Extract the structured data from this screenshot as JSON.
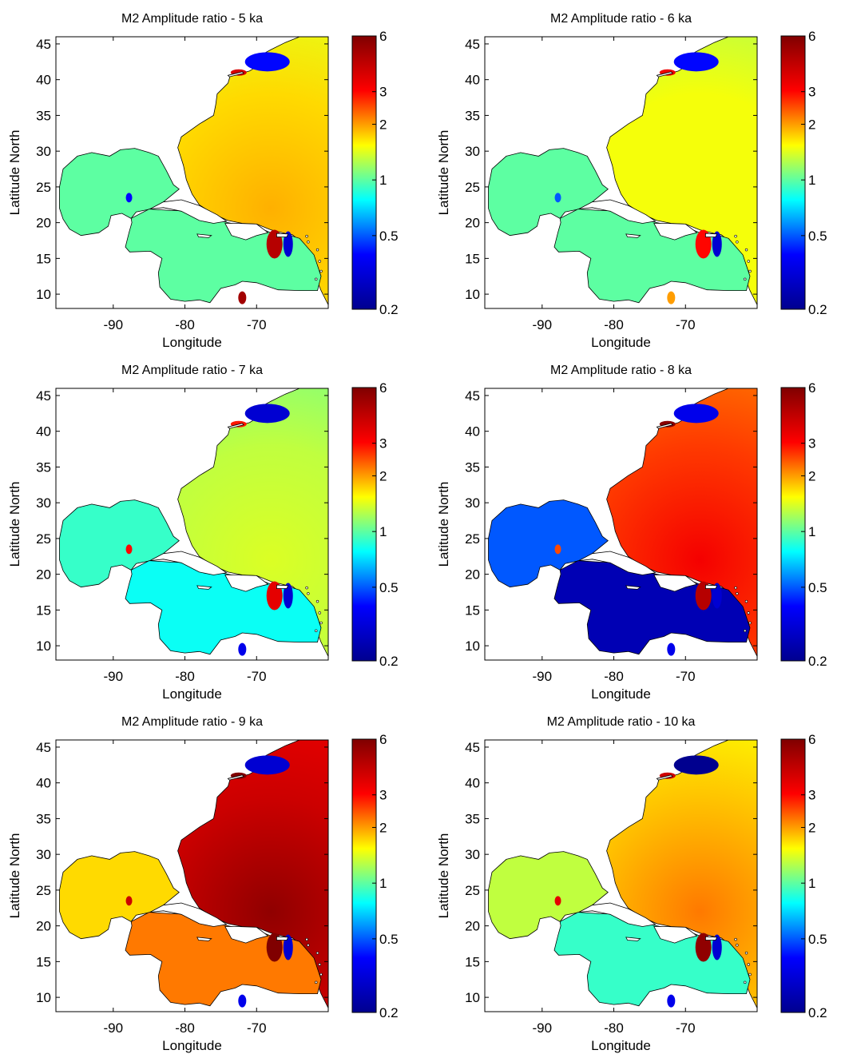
{
  "chart_data": {
    "type": "heatmap",
    "shared": {
      "title_prefix": "M2 Amplitude ratio -",
      "xlabel": "Longitude",
      "ylabel": "Latitude North",
      "xlim": [
        -98,
        -60
      ],
      "ylim": [
        8,
        46
      ],
      "xticks": [
        -90,
        -80,
        -70
      ],
      "yticks": [
        10,
        15,
        20,
        25,
        30,
        35,
        40,
        45
      ],
      "colorbar": {
        "scale": "log",
        "range": [
          0.2,
          6
        ],
        "ticks": [
          0.2,
          0.5,
          1,
          2,
          3,
          6
        ],
        "colormap": [
          "#00008f",
          "#0000ff",
          "#00ffff",
          "#ffff00",
          "#ff0000",
          "#800000"
        ]
      }
    },
    "panels": [
      {
        "title_suffix": "5 ka",
        "regions": {
          "atlantic": 1.7,
          "gulf": 1.0,
          "caribbean": 1.0,
          "gulf_of_maine": 0.4,
          "amphidrome_east_caribbean": 4.5,
          "amphidrome_yucatan": 0.4,
          "sargasso_max": 1.9
        }
      },
      {
        "title_suffix": "6 ka",
        "regions": {
          "atlantic": 1.5,
          "gulf": 1.0,
          "caribbean": 1.0,
          "gulf_of_maine": 0.4,
          "amphidrome_east_caribbean": 3.0,
          "amphidrome_yucatan": 0.5,
          "sargasso_max": 1.5
        }
      },
      {
        "title_suffix": "7 ka",
        "regions": {
          "atlantic": 1.3,
          "gulf": 0.9,
          "caribbean": 0.8,
          "gulf_of_maine": 0.3,
          "amphidrome_east_caribbean": 3.5,
          "amphidrome_yucatan": 3.0,
          "sargasso_max": 1.4
        }
      },
      {
        "title_suffix": "8 ka",
        "regions": {
          "atlantic": 2.6,
          "gulf": 0.5,
          "caribbean": 0.25,
          "gulf_of_maine": 0.35,
          "amphidrome_east_caribbean": 4.5,
          "amphidrome_yucatan": 2.5,
          "sargasso_max": 3.2
        }
      },
      {
        "title_suffix": "9 ka",
        "regions": {
          "atlantic": 4.0,
          "gulf": 1.7,
          "caribbean": 2.2,
          "gulf_of_maine": 0.3,
          "amphidrome_east_caribbean": 6.0,
          "amphidrome_yucatan": 4.0,
          "sargasso_max": 5.5
        }
      },
      {
        "title_suffix": "10 ka",
        "regions": {
          "atlantic": 1.8,
          "gulf": 1.3,
          "caribbean": 0.9,
          "gulf_of_maine": 0.2,
          "amphidrome_east_caribbean": 5.5,
          "amphidrome_yucatan": 3.5,
          "sargasso_max": 2.2
        }
      }
    ]
  }
}
